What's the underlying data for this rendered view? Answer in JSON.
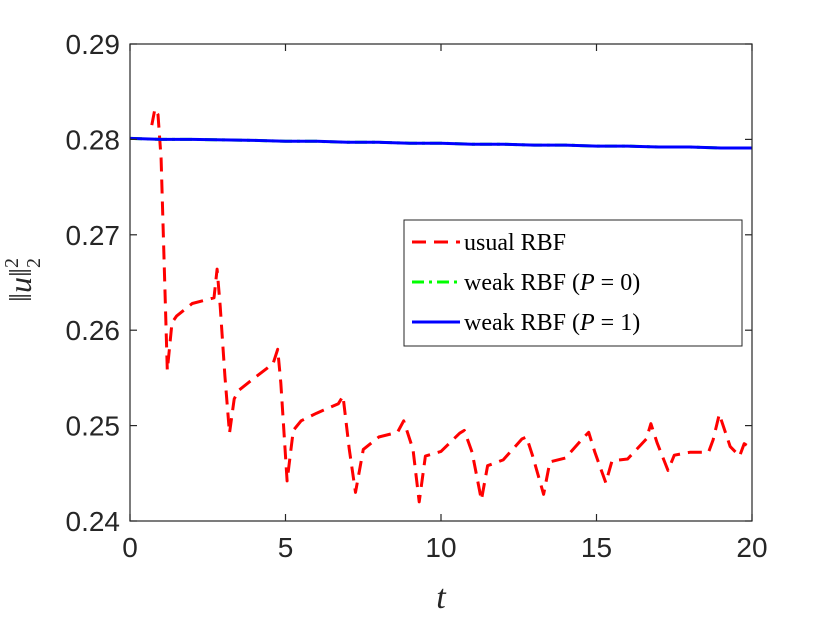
{
  "chart_data": {
    "type": "line",
    "xlabel": "t",
    "ylabel": "||u||₂²",
    "xlim": [
      0,
      20
    ],
    "ylim": [
      0.24,
      0.29
    ],
    "xticks": [
      0,
      5,
      10,
      15,
      20
    ],
    "xtick_labels": [
      "0",
      "5",
      "10",
      "15",
      "20"
    ],
    "yticks": [
      0.24,
      0.25,
      0.26,
      0.27,
      0.28,
      0.29
    ],
    "ytick_labels": [
      "0.24",
      "0.25",
      "0.26",
      "0.27",
      "0.28",
      "0.29"
    ],
    "grid": false,
    "legend_position": "center-right",
    "series": [
      {
        "name": "usual RBF",
        "color": "#ff0000",
        "style": "dashed",
        "x": [
          0.7,
          0.8,
          0.9,
          1.0,
          1.2,
          1.35,
          1.5,
          2.0,
          2.7,
          2.8,
          2.9,
          3.05,
          3.2,
          3.35,
          3.5,
          4.0,
          4.6,
          4.75,
          4.85,
          5.05,
          5.25,
          5.5,
          6.0,
          6.7,
          6.85,
          7.05,
          7.25,
          7.5,
          8.0,
          8.6,
          8.8,
          9.1,
          9.3,
          9.5,
          10.0,
          10.6,
          10.75,
          11.0,
          11.3,
          11.5,
          12.0,
          12.6,
          12.75,
          12.95,
          13.3,
          13.5,
          14.0,
          14.6,
          14.75,
          14.95,
          15.3,
          15.5,
          16.0,
          16.6,
          16.75,
          16.95,
          17.3,
          17.5,
          18.0,
          18.6,
          18.75,
          18.95,
          19.3,
          19.6,
          19.75,
          20.0
        ],
        "y": [
          0.2815,
          0.2832,
          0.2826,
          0.278,
          0.2558,
          0.2608,
          0.2615,
          0.2628,
          0.2634,
          0.2664,
          0.2625,
          0.2552,
          0.2492,
          0.2528,
          0.2537,
          0.255,
          0.2565,
          0.258,
          0.2545,
          0.2442,
          0.2495,
          0.2505,
          0.2513,
          0.2523,
          0.2531,
          0.2475,
          0.243,
          0.2475,
          0.2488,
          0.2493,
          0.2505,
          0.2475,
          0.242,
          0.2468,
          0.2473,
          0.2492,
          0.2495,
          0.2472,
          0.2422,
          0.2458,
          0.2464,
          0.2486,
          0.2488,
          0.2468,
          0.2428,
          0.2462,
          0.2466,
          0.2488,
          0.2493,
          0.2472,
          0.244,
          0.2463,
          0.2465,
          0.2486,
          0.2502,
          0.2482,
          0.2453,
          0.2469,
          0.2472,
          0.2472,
          0.2485,
          0.2512,
          0.2478,
          0.2468,
          0.2481,
          0.2476
        ]
      },
      {
        "name": "weak RBF (P = 0)",
        "color": "#00ff00",
        "style": "dashdot",
        "x": [
          0,
          1,
          2,
          3,
          4,
          5,
          6,
          7,
          8,
          9,
          10,
          11,
          12,
          13,
          14,
          15,
          16,
          17,
          18,
          19,
          20
        ],
        "y": [
          0.2801,
          0.28,
          0.28,
          0.27995,
          0.2799,
          0.2798,
          0.2798,
          0.2797,
          0.2797,
          0.2796,
          0.2796,
          0.2795,
          0.2795,
          0.2794,
          0.2794,
          0.2793,
          0.2793,
          0.2792,
          0.2792,
          0.2791,
          0.2791
        ]
      },
      {
        "name": "weak RBF (P = 1)",
        "color": "#0000ff",
        "style": "solid",
        "x": [
          0,
          1,
          2,
          3,
          4,
          5,
          6,
          7,
          8,
          9,
          10,
          11,
          12,
          13,
          14,
          15,
          16,
          17,
          18,
          19,
          20
        ],
        "y": [
          0.2801,
          0.28,
          0.28,
          0.27995,
          0.2799,
          0.2798,
          0.2798,
          0.2797,
          0.2797,
          0.2796,
          0.2796,
          0.2795,
          0.2795,
          0.2794,
          0.2794,
          0.2793,
          0.2793,
          0.2792,
          0.2792,
          0.2791,
          0.2791
        ]
      }
    ],
    "legend": {
      "entries": [
        {
          "series": 0,
          "prefix": "usual RBF",
          "var": "",
          "suffix": ""
        },
        {
          "series": 1,
          "prefix": "weak RBF (",
          "var": "P",
          "suffix": " = 0)"
        },
        {
          "series": 2,
          "prefix": "weak RBF (",
          "var": "P",
          "suffix": " = 1)"
        }
      ]
    }
  }
}
